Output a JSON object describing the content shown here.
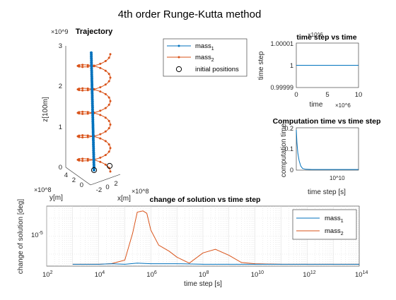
{
  "figure_title": "4th order Runge-Kutta method",
  "colors": {
    "mass1": "#0072BD",
    "mass2": "#D95319",
    "axis": "#262626",
    "grid": "#d9d9d9"
  },
  "chart_data": [
    {
      "type": "line3d",
      "title": "Trajectory",
      "xlabel": "x[m]",
      "ylabel": "y[m]",
      "zlabel": "z[100m]",
      "x_exponent": "×10^8",
      "y_exponent": "×10^8",
      "z_exponent": "×10^9",
      "x_ticks": [
        "-2",
        "0",
        "2"
      ],
      "y_ticks": [
        "0",
        "2",
        "4"
      ],
      "z_ticks": [
        "0",
        "1",
        "2",
        "3"
      ],
      "zlim": [
        0,
        3000000000.0
      ],
      "series": [
        {
          "name": "mass",
          "name_sub": "1",
          "description": "nearly straight vertical line from origin to z≈2.9e9",
          "x": [
            0,
            0
          ],
          "y": [
            0,
            0
          ],
          "z": [
            0,
            2900000000.0
          ]
        },
        {
          "name": "mass",
          "name_sub": "2",
          "description": "helix around the z axis, about 5 turns",
          "radius": 200000000.0,
          "turns": 5,
          "zlim": [
            0,
            2900000000.0
          ]
        }
      ],
      "markers": [
        {
          "label": "initial positions",
          "series": "mass1",
          "x": 0,
          "y": 0,
          "z": 0
        },
        {
          "label": "initial positions",
          "series": "mass2",
          "x": 200000000.0,
          "y": 0,
          "z": 0
        }
      ]
    },
    {
      "type": "line",
      "title": "time step vs time",
      "xlabel": "time",
      "ylabel": "time step",
      "x_exponent": "×10^6",
      "y_exponent": "×10^6",
      "xlim": [
        0,
        10
      ],
      "ylim": [
        0.99999,
        1.00001
      ],
      "x_ticks": [
        "0",
        "5",
        "10"
      ],
      "y_ticks": [
        "0.99999",
        "1",
        "1.00001"
      ],
      "series": [
        {
          "x": [
            0,
            10
          ],
          "y": [
            1,
            1
          ]
        }
      ]
    },
    {
      "type": "line",
      "title": "Computation time vs time step",
      "xlabel": "time step [s]",
      "ylabel": "computation time",
      "x_exponent": "10^10",
      "xlim": [
        0,
        1
      ],
      "ylim": [
        0,
        0.2
      ],
      "y_ticks": [
        "0",
        "0.1",
        "0.2"
      ],
      "series": [
        {
          "x": [
            0.0,
            0.01,
            0.025,
            0.045,
            0.07,
            0.1,
            0.15,
            0.25,
            0.4,
            0.6,
            0.8,
            1.0
          ],
          "y": [
            0.19,
            0.13,
            0.08,
            0.045,
            0.02,
            0.008,
            0.004,
            0.003,
            0.003,
            0.003,
            0.003,
            0.003
          ]
        }
      ]
    },
    {
      "type": "line",
      "title": "change of solution vs time step",
      "xlabel": "time step [s]",
      "ylabel": "change of solution [deg]",
      "xscale": "log",
      "xlim": [
        100,
        100000000000000.0
      ],
      "x_ticks": [
        {
          "base": "10",
          "exp": "2"
        },
        {
          "base": "10",
          "exp": "4"
        },
        {
          "base": "10",
          "exp": "6"
        },
        {
          "base": "10",
          "exp": "8"
        },
        {
          "base": "10",
          "exp": "10"
        },
        {
          "base": "10",
          "exp": "12"
        },
        {
          "base": "10",
          "exp": "14"
        }
      ],
      "y_ticks": [
        {
          "base": "10",
          "exp": "-5"
        }
      ],
      "legend": "top-right",
      "series": [
        {
          "name": "mass",
          "name_sub": "1",
          "x": [
            1000.0,
            10000.0,
            30000.0,
            100000.0,
            300000.0,
            1000000.0,
            10000000.0,
            100000000.0,
            1000000000.0,
            10000000000.0,
            100000000000.0,
            1000000000000.0,
            10000000000000.0,
            100000000000000.0
          ],
          "y": [
            0.03,
            0.03,
            0.04,
            0.03,
            0.05,
            0.04,
            0.04,
            0.03,
            0.03,
            0.03,
            0.03,
            0.03,
            0.03,
            0.03
          ]
        },
        {
          "name": "mass",
          "name_sub": "2",
          "x": [
            1000.0,
            10000.0,
            30000.0,
            100000.0,
            200000.0,
            300000.0,
            500000.0,
            700000.0,
            1000000.0,
            2000000.0,
            5000000.0,
            10000000.0,
            30000000.0,
            100000000.0,
            300000000.0,
            1000000000.0,
            3000000000.0,
            10000000000.0,
            100000000000.0,
            1000000000000.0,
            10000000000000.0,
            100000000000000.0
          ],
          "y": [
            0.03,
            0.03,
            0.04,
            0.1,
            0.55,
            0.9,
            0.92,
            0.88,
            0.6,
            0.35,
            0.25,
            0.15,
            0.05,
            0.22,
            0.28,
            0.18,
            0.06,
            0.04,
            0.03,
            0.03,
            0.03,
            0.03
          ]
        }
      ]
    }
  ]
}
